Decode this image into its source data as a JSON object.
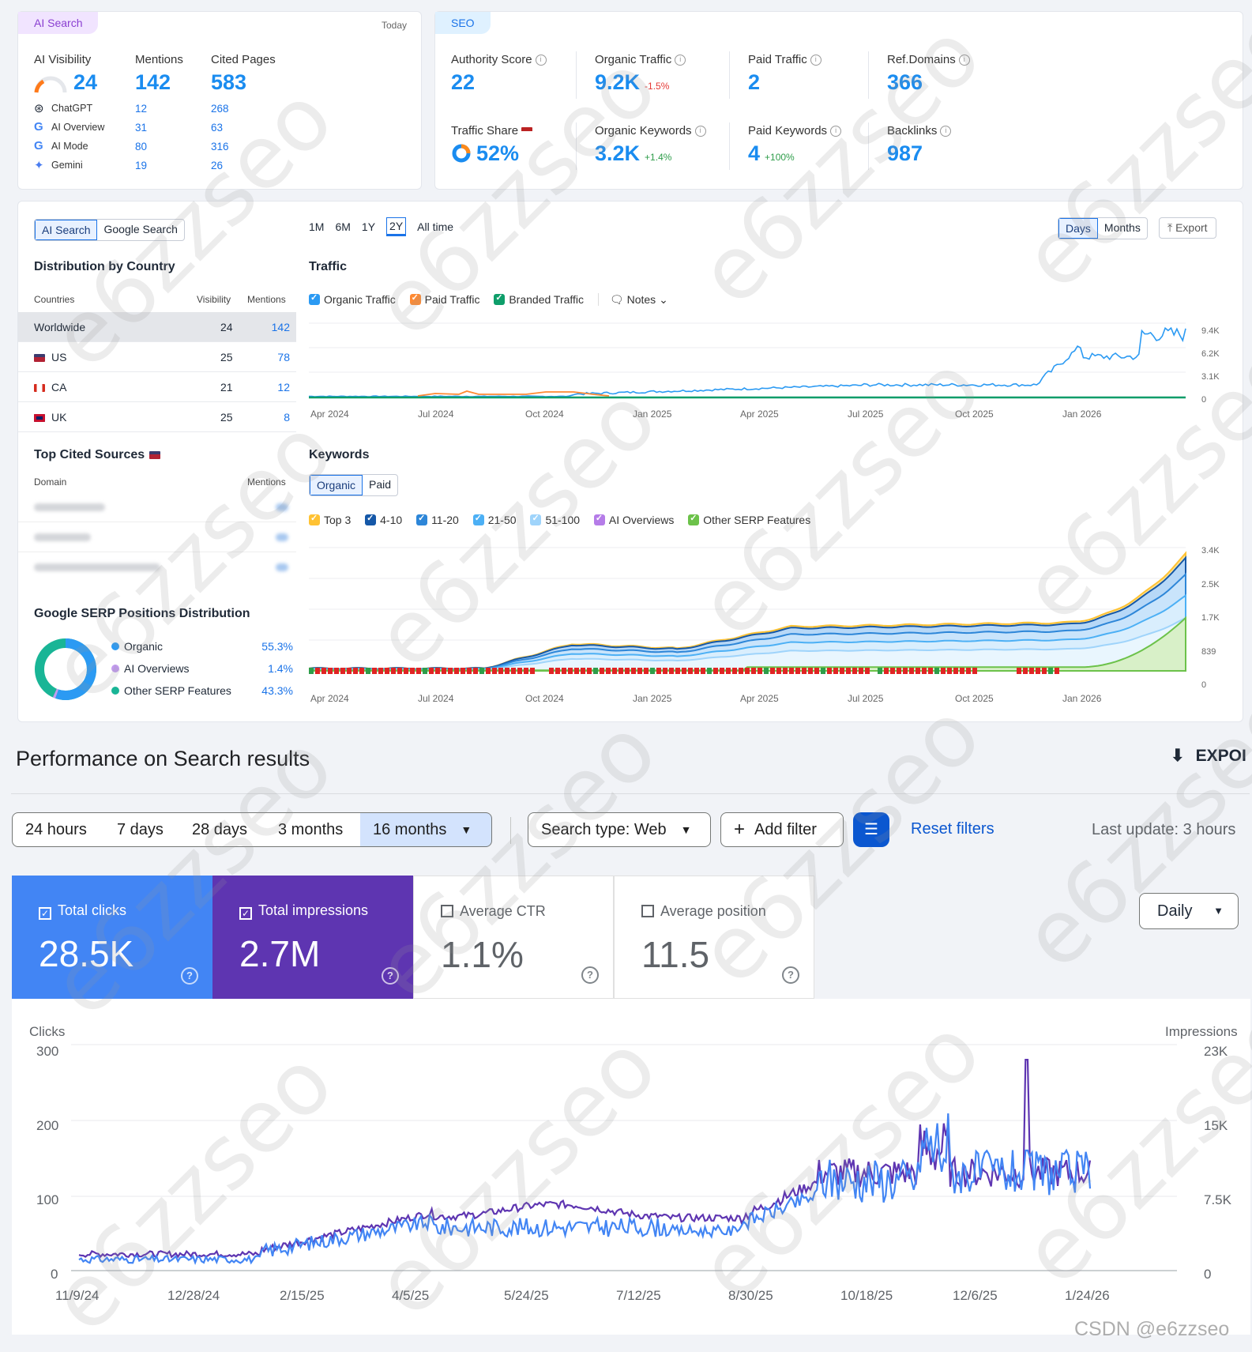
{
  "ai_search": {
    "tag": "AI Search",
    "date": "Today",
    "visibility_label": "AI Visibility",
    "visibility_value": "24",
    "mentions_label": "Mentions",
    "mentions_value": "142",
    "cited_label": "Cited Pages",
    "cited_value": "583",
    "engines": [
      {
        "name": "ChatGPT",
        "mentions": "12",
        "cited": "268",
        "icon": "chatgpt-icon"
      },
      {
        "name": "AI Overview",
        "mentions": "31",
        "cited": "63",
        "icon": "google-icon"
      },
      {
        "name": "AI Mode",
        "mentions": "80",
        "cited": "316",
        "icon": "google-icon"
      },
      {
        "name": "Gemini",
        "mentions": "19",
        "cited": "26",
        "icon": "gemini-icon"
      }
    ]
  },
  "seo": {
    "tag": "SEO",
    "authority_label": "Authority Score",
    "authority_value": "22",
    "organic_traffic_label": "Organic Traffic",
    "organic_traffic_value": "9.2K",
    "organic_traffic_delta": "-1.5%",
    "paid_traffic_label": "Paid Traffic",
    "paid_traffic_value": "2",
    "refdomains_label": "Ref.Domains",
    "refdomains_value": "366",
    "traffic_share_label": "Traffic Share",
    "traffic_share_value": "52%",
    "organic_keywords_label": "Organic Keywords",
    "organic_keywords_value": "3.2K",
    "organic_keywords_delta": "+1.4%",
    "paid_keywords_label": "Paid Keywords",
    "paid_keywords_value": "4",
    "paid_keywords_delta": "+100%",
    "backlinks_label": "Backlinks",
    "backlinks_value": "987"
  },
  "panel": {
    "toggle": [
      "AI Search",
      "Google Search"
    ],
    "periods": [
      "1M",
      "6M",
      "1Y",
      "2Y",
      "All time"
    ],
    "active_period": "2Y",
    "view": [
      "Days",
      "Months"
    ],
    "export": "Export",
    "distribution_title": "Distribution by Country",
    "col_countries": "Countries",
    "col_visibility": "Visibility",
    "col_mentions": "Mentions",
    "countries": [
      {
        "name": "Worldwide",
        "visibility": "24",
        "mentions": "142"
      },
      {
        "name": "US",
        "visibility": "25",
        "mentions": "78"
      },
      {
        "name": "CA",
        "visibility": "21",
        "mentions": "12"
      },
      {
        "name": "UK",
        "visibility": "25",
        "mentions": "8"
      }
    ],
    "top_cited_title": "Top Cited Sources",
    "col_domain": "Domain",
    "col_mentions2": "Mentions",
    "serp_title": "Google SERP Positions Distribution",
    "serp_items": [
      {
        "name": "Organic",
        "value": "55.3%",
        "color": "#2b9af3"
      },
      {
        "name": "AI Overviews",
        "value": "1.4%",
        "color": "#c39bf0"
      },
      {
        "name": "Other SERP Features",
        "value": "43.3%",
        "color": "#19b596"
      }
    ],
    "traffic_title": "Traffic",
    "traffic_legend": [
      "Organic Traffic",
      "Paid Traffic",
      "Branded Traffic"
    ],
    "notes": "Notes",
    "traffic_yticks": [
      "9.4K",
      "6.2K",
      "3.1K",
      "0"
    ],
    "keywords_title": "Keywords",
    "kw_toggle": [
      "Organic",
      "Paid"
    ],
    "kw_legend": [
      "Top 3",
      "4-10",
      "11-20",
      "21-50",
      "51-100",
      "AI Overviews",
      "Other SERP Features"
    ],
    "kw_yticks": [
      "3.4K",
      "2.5K",
      "1.7K",
      "839",
      "0"
    ],
    "xticks": [
      "Apr 2024",
      "Jul 2024",
      "Oct 2024",
      "Jan 2025",
      "Apr 2025",
      "Jul 2025",
      "Oct 2025",
      "Jan 2026"
    ]
  },
  "gsc": {
    "title": "Performance on Search results",
    "export": "EXPOI",
    "ranges": [
      "24 hours",
      "7 days",
      "28 days",
      "3 months",
      "16 months"
    ],
    "search_type": "Search type: Web",
    "add_filter": "Add filter",
    "reset": "Reset filters",
    "last_update": "Last update: 3 hours",
    "metrics": [
      {
        "label": "Total clicks",
        "value": "28.5K"
      },
      {
        "label": "Total impressions",
        "value": "2.7M"
      },
      {
        "label": "Average CTR",
        "value": "1.1%"
      },
      {
        "label": "Average position",
        "value": "11.5"
      }
    ],
    "granularity": "Daily",
    "left_axis_title": "Clicks",
    "right_axis_title": "Impressions",
    "left_ticks": [
      "300",
      "200",
      "100",
      "0"
    ],
    "right_ticks": [
      "23K",
      "15K",
      "7.5K",
      "0"
    ],
    "xticks": [
      "11/9/24",
      "12/28/24",
      "2/15/25",
      "4/5/25",
      "5/24/25",
      "7/12/25",
      "8/30/25",
      "10/18/25",
      "12/6/25",
      "1/24/26"
    ]
  },
  "watermark": "e6zzseo",
  "footer_mark": "CSDN @e6zzseo"
}
